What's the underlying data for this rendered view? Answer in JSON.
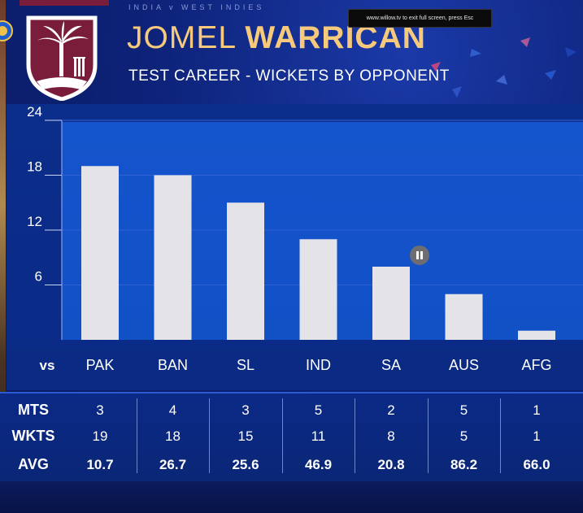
{
  "header": {
    "match_caption": "INDIA v WEST INDIES",
    "fullscreen_notice": "www.willow.tv    to exit full screen, press  Esc",
    "title_first": "JOMEL ",
    "title_last": "WARRICAN",
    "subtitle": "TEST CAREER - WICKETS BY OPPONENT"
  },
  "colors": {
    "title_gold": "#f6c97c",
    "bar": "#e4e4e8",
    "plot_blue": "#1454cc",
    "panel_navy": "#0b2a86"
  },
  "icons": {
    "logo": "west-indies-crest-icon",
    "board": "bcci-crest-icon",
    "pause": "pause-icon"
  },
  "chart_data": {
    "type": "bar",
    "title": "TEST CAREER - WICKETS BY OPPONENT",
    "categories": [
      "PAK",
      "BAN",
      "SL",
      "IND",
      "SA",
      "AUS",
      "AFG"
    ],
    "values": [
      19,
      18,
      15,
      11,
      8,
      5,
      1
    ],
    "category_prefix": "vs",
    "xlabel": "",
    "ylabel": "",
    "yticks": [
      6,
      12,
      18,
      24
    ],
    "ylim": [
      0,
      24
    ],
    "grid": true,
    "legend": "none"
  },
  "stats": {
    "labels": [
      "MTS",
      "WKTS",
      "AVG"
    ],
    "MTS": [
      "3",
      "4",
      "3",
      "5",
      "2",
      "5",
      "1"
    ],
    "WKTS": [
      "19",
      "18",
      "15",
      "11",
      "8",
      "5",
      "1"
    ],
    "AVG": [
      "10.7",
      "26.7",
      "25.6",
      "46.9",
      "20.8",
      "86.2",
      "66.0"
    ]
  }
}
